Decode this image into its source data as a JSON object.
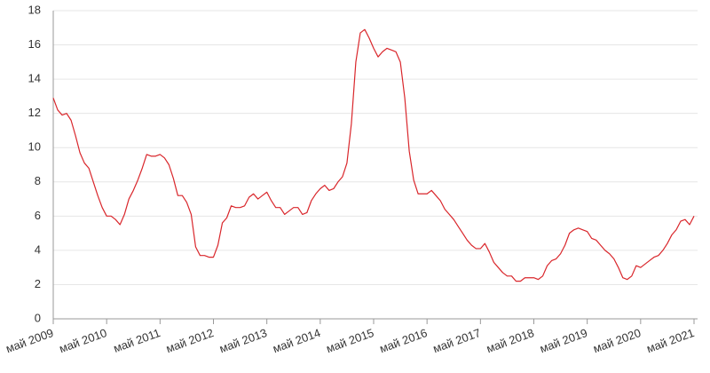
{
  "chart_data": {
    "type": "line",
    "categories": [
      "май 2009",
      null,
      null,
      null,
      null,
      null,
      null,
      null,
      null,
      null,
      null,
      null,
      "май 2010",
      null,
      null,
      null,
      null,
      null,
      null,
      null,
      null,
      null,
      null,
      null,
      "май 2011",
      null,
      null,
      null,
      null,
      null,
      null,
      null,
      null,
      null,
      null,
      null,
      "май 2012",
      null,
      null,
      null,
      null,
      null,
      null,
      null,
      null,
      null,
      null,
      null,
      "май 2013",
      null,
      null,
      null,
      null,
      null,
      null,
      null,
      null,
      null,
      null,
      null,
      "май 2014",
      null,
      null,
      null,
      null,
      null,
      null,
      null,
      null,
      null,
      null,
      null,
      "май 2015",
      null,
      null,
      null,
      null,
      null,
      null,
      null,
      null,
      null,
      null,
      null,
      "май 2016",
      null,
      null,
      null,
      null,
      null,
      null,
      null,
      null,
      null,
      null,
      null,
      "май 2017",
      null,
      null,
      null,
      null,
      null,
      null,
      null,
      null,
      null,
      null,
      null,
      "май 2018",
      null,
      null,
      null,
      null,
      null,
      null,
      null,
      null,
      null,
      null,
      null,
      "май 2019",
      null,
      null,
      null,
      null,
      null,
      null,
      null,
      null,
      null,
      null,
      null,
      "май 2020",
      null,
      null,
      null,
      null,
      null,
      null,
      null,
      null,
      null,
      null,
      null,
      "май 2021"
    ],
    "values": [
      12.9,
      12.2,
      11.9,
      12.0,
      11.6,
      10.7,
      9.7,
      9.1,
      8.8,
      8.0,
      7.2,
      6.5,
      6.0,
      6.0,
      5.8,
      5.5,
      6.1,
      7.0,
      7.5,
      8.1,
      8.8,
      9.6,
      9.5,
      9.5,
      9.6,
      9.4,
      9.0,
      8.2,
      7.2,
      7.2,
      6.8,
      6.1,
      4.2,
      3.7,
      3.7,
      3.6,
      3.6,
      4.3,
      5.6,
      5.9,
      6.6,
      6.5,
      6.5,
      6.6,
      7.1,
      7.3,
      7.0,
      7.2,
      7.4,
      6.9,
      6.5,
      6.5,
      6.1,
      6.3,
      6.5,
      6.5,
      6.1,
      6.2,
      6.9,
      7.3,
      7.6,
      7.8,
      7.5,
      7.6,
      8.0,
      8.3,
      9.1,
      11.4,
      15.0,
      16.7,
      16.9,
      16.4,
      15.8,
      15.3,
      15.6,
      15.8,
      15.7,
      15.6,
      15.0,
      12.9,
      9.8,
      8.1,
      7.3,
      7.3,
      7.3,
      7.5,
      7.2,
      6.9,
      6.4,
      6.1,
      5.8,
      5.4,
      5.0,
      4.6,
      4.3,
      4.1,
      4.1,
      4.4,
      3.9,
      3.3,
      3.0,
      2.7,
      2.5,
      2.5,
      2.2,
      2.2,
      2.4,
      2.4,
      2.4,
      2.3,
      2.5,
      3.1,
      3.4,
      3.5,
      3.8,
      4.3,
      5.0,
      5.2,
      5.3,
      5.2,
      5.1,
      4.7,
      4.6,
      4.3,
      4.0,
      3.8,
      3.5,
      3.0,
      2.4,
      2.3,
      2.5,
      3.1,
      3.0,
      3.2,
      3.4,
      3.6,
      3.7,
      4.0,
      4.4,
      4.9,
      5.2,
      5.7,
      5.8,
      5.5,
      6.0
    ],
    "color": "#d9262b",
    "ylim": [
      0,
      18
    ],
    "yticks": [
      0,
      2,
      4,
      6,
      8,
      10,
      12,
      14,
      16,
      18
    ],
    "grid": true
  }
}
